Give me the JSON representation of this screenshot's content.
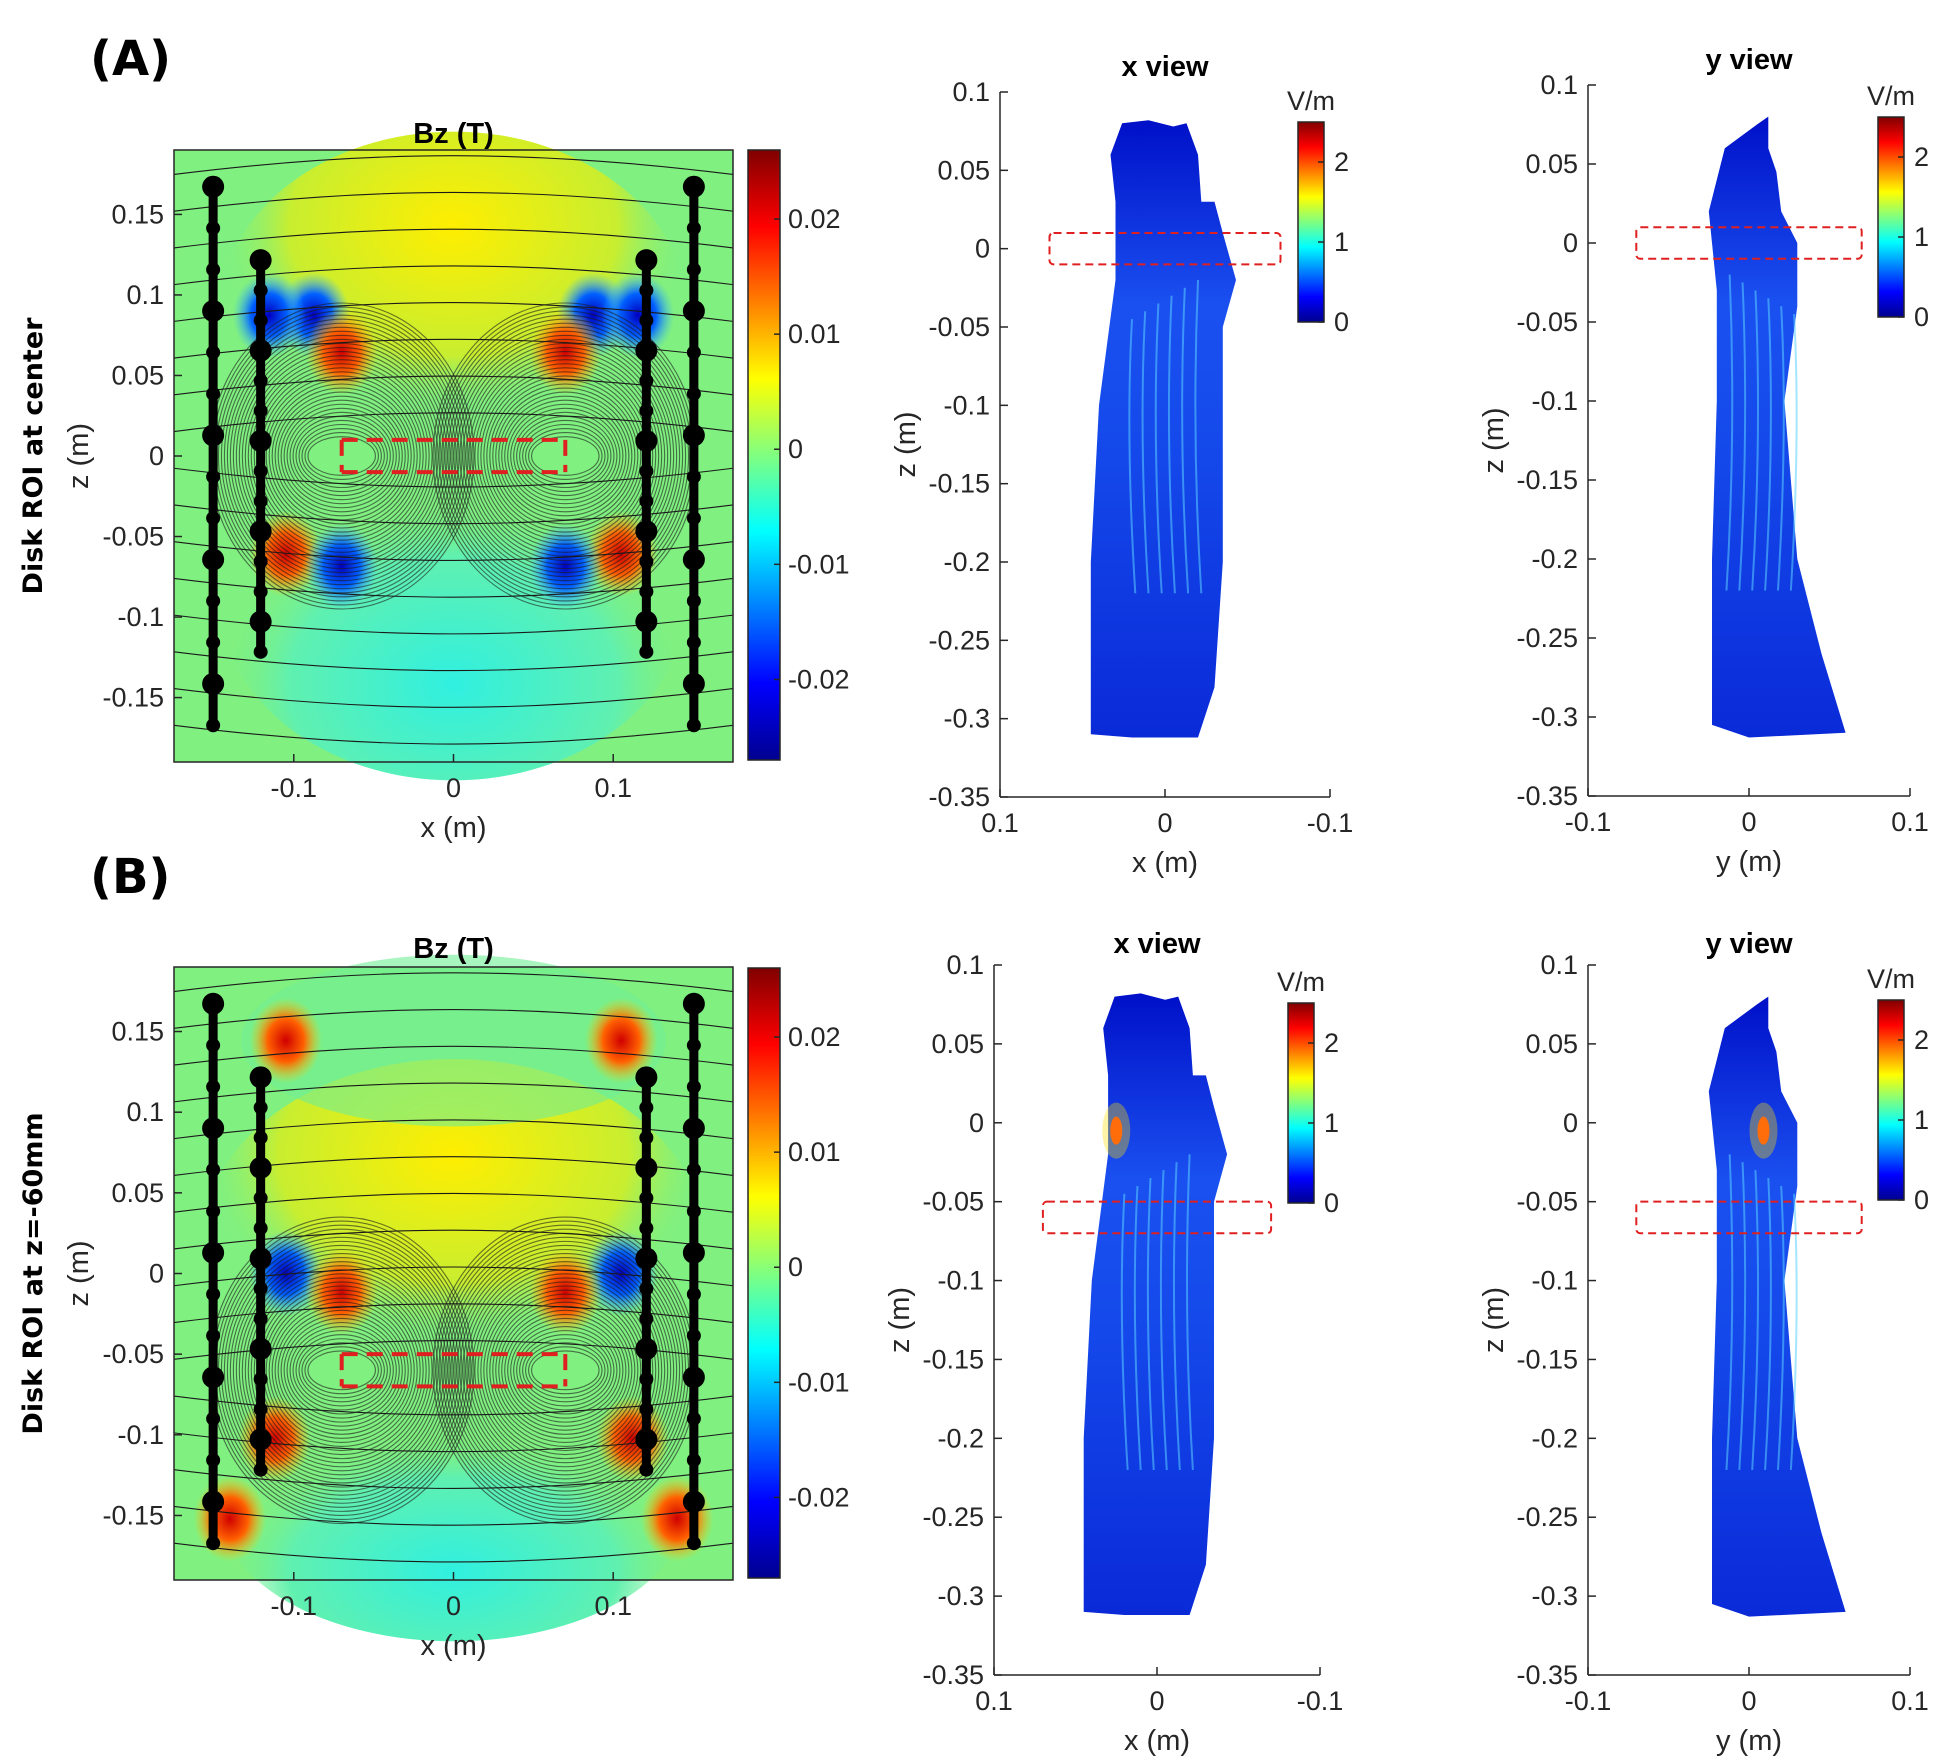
{
  "panels": [
    {
      "label": "(A)",
      "row_label": "Disk ROI at center",
      "roi_center_z": 0,
      "contour": {
        "title": "Bz (T)",
        "xlabel": "x (m)",
        "ylabel": "z (m)",
        "xticks": [
          -0.1,
          0,
          0.1
        ],
        "yticks": [
          0.15,
          0.1,
          0.05,
          0,
          -0.05,
          -0.1,
          -0.15
        ],
        "xlim": [
          -0.175,
          0.175
        ],
        "ylim": [
          -0.19,
          0.19
        ],
        "colorbar_ticks": [
          0.02,
          0.01,
          0,
          -0.01,
          -0.02
        ],
        "colorbar_lim": [
          -0.027,
          0.026
        ]
      },
      "xview": {
        "title": "x view",
        "xlabel": "x (m)",
        "ylabel": "z (m)",
        "xticks": [
          0.1,
          0,
          -0.1
        ],
        "yticks": [
          0.1,
          0.05,
          0,
          -0.05,
          -0.1,
          -0.15,
          -0.2,
          -0.25,
          -0.3,
          -0.35
        ],
        "colorbar_label": "V/m",
        "colorbar_ticks": [
          2,
          1,
          0
        ]
      },
      "yview": {
        "title": "y view",
        "xlabel": "y (m)",
        "ylabel": "z (m)",
        "xticks": [
          -0.1,
          0,
          0.1
        ],
        "yticks": [
          0.1,
          0.05,
          0,
          -0.05,
          -0.1,
          -0.15,
          -0.2,
          -0.25,
          -0.3,
          -0.35
        ],
        "colorbar_label": "V/m",
        "colorbar_ticks": [
          2,
          1,
          0
        ]
      }
    },
    {
      "label": "(B)",
      "row_label": "Disk ROI at z=-60mm",
      "roi_center_z": -0.06,
      "contour": {
        "title": "Bz (T)",
        "xlabel": "x (m)",
        "ylabel": "z (m)",
        "xticks": [
          -0.1,
          0,
          0.1
        ],
        "yticks": [
          0.15,
          0.1,
          0.05,
          0,
          -0.05,
          -0.1,
          -0.15
        ],
        "xlim": [
          -0.175,
          0.175
        ],
        "ylim": [
          -0.19,
          0.19
        ],
        "colorbar_ticks": [
          0.02,
          0.01,
          0,
          -0.01,
          -0.02
        ],
        "colorbar_lim": [
          -0.027,
          0.026
        ]
      },
      "xview": {
        "title": "x view",
        "xlabel": "x (m)",
        "ylabel": "z (m)",
        "xticks": [
          0.1,
          0,
          -0.1
        ],
        "yticks": [
          0.1,
          0.05,
          0,
          -0.05,
          -0.1,
          -0.15,
          -0.2,
          -0.25,
          -0.3,
          -0.35
        ],
        "colorbar_label": "V/m",
        "colorbar_ticks": [
          2,
          1,
          0
        ]
      },
      "yview": {
        "title": "y view",
        "xlabel": "y (m)",
        "ylabel": "z (m)",
        "xticks": [
          -0.1,
          0,
          0.1
        ],
        "yticks": [
          0.1,
          0.05,
          0,
          -0.05,
          -0.1,
          -0.15,
          -0.2,
          -0.25,
          -0.3,
          -0.35
        ],
        "colorbar_label": "V/m",
        "colorbar_ticks": [
          2,
          1,
          0
        ]
      }
    }
  ],
  "chart_data": [
    {
      "type": "heatmap",
      "title": "Bz (T)",
      "xlabel": "x (m)",
      "ylabel": "z (m)",
      "xlim": [
        -0.175,
        0.175
      ],
      "ylim": [
        -0.19,
        0.19
      ],
      "colorbar_range": [
        -0.027,
        0.026
      ],
      "roi_z": 0
    },
    {
      "type": "heatmap",
      "title": "x view",
      "xlabel": "x (m)",
      "ylabel": "z (m)",
      "xlim": [
        0.1,
        -0.1
      ],
      "ylim": [
        -0.35,
        0.1
      ],
      "colorbar_range": [
        0,
        2.5
      ],
      "roi_z": 0
    },
    {
      "type": "heatmap",
      "title": "y view",
      "xlabel": "y (m)",
      "ylabel": "z (m)",
      "xlim": [
        -0.1,
        0.1
      ],
      "ylim": [
        -0.35,
        0.1
      ],
      "colorbar_range": [
        0,
        2.5
      ],
      "roi_z": 0
    },
    {
      "type": "heatmap",
      "title": "Bz (T)",
      "xlabel": "x (m)",
      "ylabel": "z (m)",
      "xlim": [
        -0.175,
        0.175
      ],
      "ylim": [
        -0.19,
        0.19
      ],
      "colorbar_range": [
        -0.027,
        0.026
      ],
      "roi_z": -0.06
    },
    {
      "type": "heatmap",
      "title": "x view",
      "xlabel": "x (m)",
      "ylabel": "z (m)",
      "xlim": [
        0.1,
        -0.1
      ],
      "ylim": [
        -0.35,
        0.1
      ],
      "colorbar_range": [
        0,
        2.5
      ],
      "roi_z": -0.06
    },
    {
      "type": "heatmap",
      "title": "y view",
      "xlabel": "y (m)",
      "ylabel": "z (m)",
      "xlim": [
        -0.1,
        0.1
      ],
      "ylim": [
        -0.35,
        0.1
      ],
      "colorbar_range": [
        0,
        2.5
      ],
      "roi_z": -0.06
    }
  ]
}
